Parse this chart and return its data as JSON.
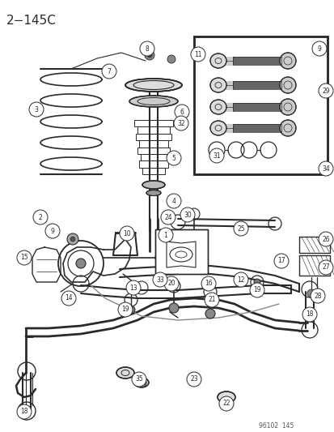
{
  "title": "2−145C",
  "watermark": "96102  145",
  "bg_color": "#ffffff",
  "line_color": "#2a2a2a",
  "title_fontsize": 11,
  "fig_width": 4.14,
  "fig_height": 5.33,
  "dpi": 100
}
